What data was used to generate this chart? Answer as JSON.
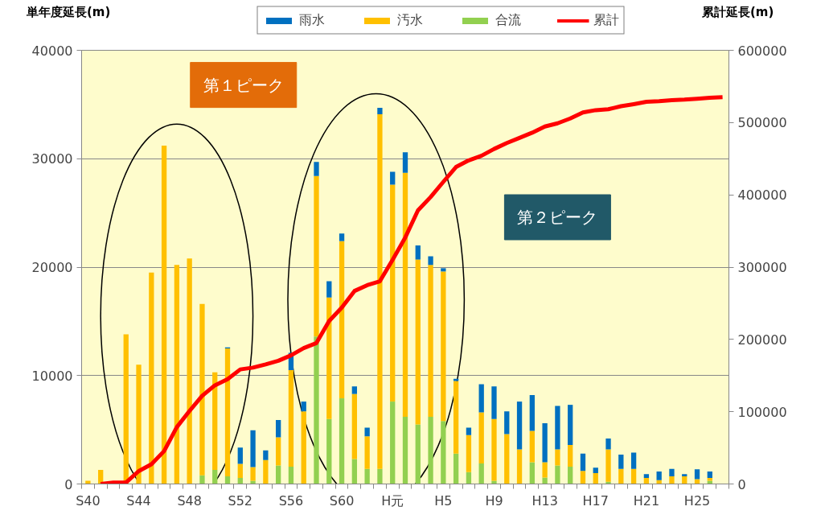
{
  "chart_data": {
    "type": "bar",
    "stacked": true,
    "ylabel": "単年度延長(m)",
    "y2label": "累計延長(m)",
    "categories": [
      "S40",
      null,
      null,
      null,
      "S44",
      null,
      null,
      null,
      "S48",
      null,
      null,
      null,
      "S52",
      null,
      null,
      null,
      "S56",
      null,
      null,
      null,
      "S60",
      null,
      null,
      null,
      "H元",
      null,
      null,
      null,
      "H5",
      null,
      null,
      null,
      "H9",
      null,
      null,
      null,
      "H13",
      null,
      null,
      null,
      "H17",
      null,
      null,
      null,
      "H21",
      null,
      null,
      null,
      "H25",
      null,
      null
    ],
    "series": [
      {
        "name": "合流",
        "color": "#92d050",
        "values": [
          0,
          0,
          0,
          0,
          0,
          0,
          0,
          0,
          0,
          800,
          1300,
          700,
          550,
          300,
          0,
          1700,
          1600,
          0,
          13600,
          6000,
          7900,
          2300,
          1400,
          1400,
          7600,
          6200,
          5500,
          6200,
          5800,
          2800,
          1100,
          1900,
          300,
          0,
          0,
          2000,
          600,
          1700,
          1600,
          0,
          0,
          200,
          0,
          0,
          0,
          0,
          0,
          0,
          0,
          300,
          null
        ]
      },
      {
        "name": "汚水",
        "color": "#ffc000",
        "values": [
          300,
          1300,
          0,
          13800,
          11000,
          19500,
          31200,
          20200,
          20800,
          15800,
          9000,
          11800,
          1300,
          1250,
          2200,
          2600,
          8900,
          6700,
          14800,
          11200,
          14500,
          6000,
          3000,
          32700,
          20000,
          22500,
          15200,
          14000,
          13800,
          6700,
          3400,
          4700,
          5700,
          4600,
          3200,
          2900,
          1400,
          1500,
          2000,
          1200,
          1000,
          3000,
          1400,
          1400,
          550,
          350,
          700,
          700,
          450,
          250,
          null
        ]
      },
      {
        "name": "雨水",
        "color": "#0070c0",
        "values": [
          0,
          0,
          0,
          0,
          0,
          0,
          0,
          0,
          0,
          0,
          0,
          100,
          1500,
          3400,
          900,
          1600,
          1600,
          900,
          1300,
          1500,
          700,
          700,
          800,
          600,
          1200,
          1900,
          1300,
          800,
          300,
          200,
          700,
          2600,
          3000,
          2100,
          4400,
          3300,
          3600,
          4000,
          3700,
          1600,
          500,
          1000,
          1300,
          1500,
          350,
          800,
          700,
          200,
          900,
          600,
          null
        ]
      },
      {
        "name": "累計",
        "color": "#ff0000",
        "type": "line",
        "axis": "y2",
        "values": [
          null,
          0,
          2000,
          2000,
          17800,
          27300,
          45500,
          78600,
          101000,
          122000,
          136500,
          145000,
          158500,
          161000,
          165500,
          170500,
          178000,
          188000,
          195000,
          225500,
          244000,
          267000,
          275000,
          280500,
          310000,
          341000,
          378500,
          397000,
          418000,
          438500,
          447700,
          454000,
          463500,
          471700,
          478800,
          486000,
          494500,
          499000,
          505700,
          514000,
          517200,
          518500,
          522600,
          525500,
          528800,
          529700,
          531000,
          531800,
          533000,
          534300,
          535100
        ]
      }
    ],
    "ylim": [
      0,
      40000
    ],
    "yticks": [
      0,
      10000,
      20000,
      30000,
      40000
    ],
    "y2lim": [
      0,
      600000
    ],
    "y2ticks": [
      0,
      100000,
      200000,
      300000,
      400000,
      500000,
      600000
    ],
    "grid": "y",
    "legend": "top",
    "marker": "none",
    "line_style": "solid",
    "annotations": [
      "第１ピーク",
      "第２ピーク"
    ]
  }
}
